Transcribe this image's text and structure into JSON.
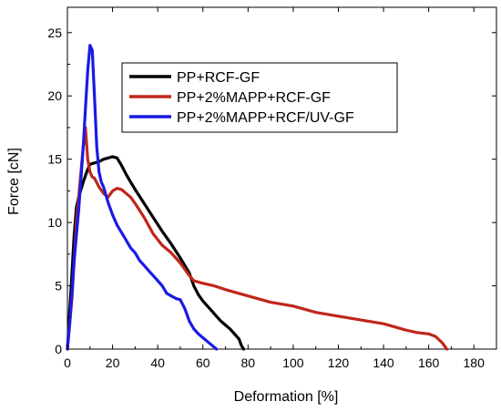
{
  "chart_data": {
    "type": "line",
    "xlabel": "Deformation [%]",
    "ylabel": "Force [cN]",
    "xlim": [
      0,
      190
    ],
    "ylim": [
      0,
      27
    ],
    "xticks": [
      0,
      20,
      40,
      60,
      80,
      100,
      120,
      140,
      160,
      180
    ],
    "yticks": [
      0,
      5,
      10,
      15,
      20,
      25
    ],
    "legend_position": "top-right",
    "series": [
      {
        "name": "PP+RCF-GF",
        "color": "#000000",
        "x": [
          0,
          1,
          2,
          3,
          4,
          5,
          6,
          7,
          8,
          9,
          10,
          12,
          14,
          16,
          18,
          20,
          22,
          24,
          26,
          28,
          30,
          34,
          38,
          42,
          46,
          50,
          54,
          56,
          58,
          60,
          62,
          64,
          66,
          68,
          70,
          72,
          74,
          76,
          77,
          78
        ],
        "y": [
          0,
          3,
          6,
          9,
          11.2,
          12,
          12.6,
          13.2,
          13.7,
          14.2,
          14.6,
          14.7,
          14.8,
          15,
          15.1,
          15.2,
          15.1,
          14.5,
          13.8,
          13.2,
          12.6,
          11.5,
          10.4,
          9.3,
          8.3,
          7.2,
          6,
          5,
          4.3,
          3.8,
          3.4,
          3,
          2.6,
          2.2,
          1.9,
          1.6,
          1.2,
          0.8,
          0.3,
          0
        ]
      },
      {
        "name": "PP+2%MAPP+RCF-GF",
        "color": "#c0261a",
        "x": [
          0,
          1,
          2,
          3,
          4,
          5,
          6,
          7,
          8,
          9,
          10,
          11,
          12,
          14,
          16,
          18,
          20,
          22,
          24,
          26,
          28,
          30,
          34,
          38,
          42,
          46,
          50,
          54,
          56,
          58,
          60,
          65,
          70,
          80,
          90,
          100,
          110,
          120,
          130,
          140,
          150,
          155,
          160,
          163,
          166,
          168
        ],
        "y": [
          0,
          2,
          4,
          7,
          10,
          12,
          14,
          16,
          17.5,
          15,
          14,
          13.6,
          13.5,
          12.8,
          12.3,
          12,
          12.5,
          12.7,
          12.6,
          12.3,
          12,
          11.5,
          10.4,
          9.1,
          8.2,
          7.6,
          6.8,
          5.8,
          5.4,
          5.3,
          5.2,
          5,
          4.7,
          4.2,
          3.7,
          3.4,
          2.9,
          2.6,
          2.3,
          2,
          1.5,
          1.3,
          1.2,
          1,
          0.5,
          0
        ]
      },
      {
        "name": "PP+2%MAPP+RCF/UV-GF",
        "color": "#1a1ae6",
        "x": [
          0,
          1,
          2,
          3,
          4,
          5,
          6,
          7,
          8,
          9,
          10,
          11,
          12,
          13,
          14,
          15,
          16,
          18,
          20,
          22,
          24,
          26,
          28,
          30,
          32,
          34,
          36,
          38,
          40,
          42,
          44,
          46,
          48,
          50,
          52,
          54,
          56,
          58,
          60,
          62,
          64,
          66
        ],
        "y": [
          0,
          2,
          4.5,
          7,
          9,
          11,
          13.5,
          16,
          19,
          22,
          24,
          23.6,
          20,
          16,
          14,
          13.2,
          12.8,
          11.6,
          10.6,
          9.8,
          9.2,
          8.6,
          8,
          7.6,
          7,
          6.6,
          6.2,
          5.8,
          5.4,
          5,
          4.4,
          4.2,
          4,
          3.9,
          3.2,
          2.2,
          1.6,
          1.2,
          0.9,
          0.6,
          0.3,
          0
        ]
      }
    ]
  }
}
